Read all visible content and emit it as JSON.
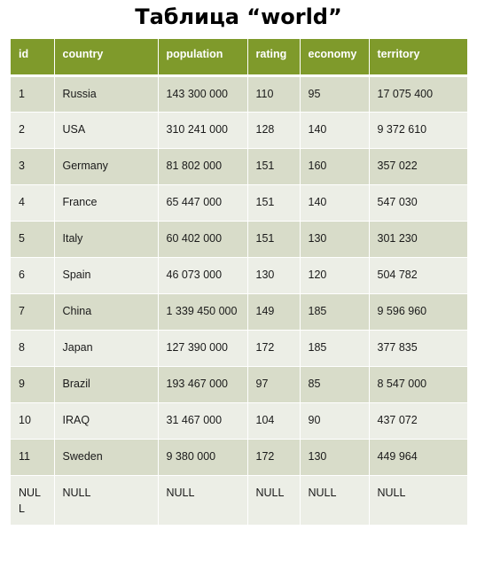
{
  "title": "Таблица “world”",
  "table": {
    "headers": [
      "id",
      "country",
      "population",
      "rating",
      "economy",
      "territory"
    ],
    "rows": [
      [
        "1",
        "Russia",
        "143 300 000",
        "110",
        "95",
        "17 075 400"
      ],
      [
        "2",
        "USA",
        "310 241 000",
        "128",
        "140",
        "9 372 610"
      ],
      [
        "3",
        "Germany",
        "81 802 000",
        "151",
        "160",
        "357 022"
      ],
      [
        "4",
        "France",
        "65 447 000",
        "151",
        "140",
        "547 030"
      ],
      [
        "5",
        "Italy",
        "60 402 000",
        "151",
        "130",
        "301 230"
      ],
      [
        "6",
        "Spain",
        "46 073 000",
        "130",
        "120",
        "504 782"
      ],
      [
        "7",
        "China",
        "1 339 450 000",
        "149",
        "185",
        "9 596 960"
      ],
      [
        "8",
        "Japan",
        "127 390 000",
        "172",
        "185",
        "377 835"
      ],
      [
        "9",
        "Brazil",
        "193 467 000",
        "97",
        "85",
        "8 547 000"
      ],
      [
        "10",
        "IRAQ",
        "31 467 000",
        "104",
        "90",
        "437 072"
      ],
      [
        "11",
        "Sweden",
        "9 380 000",
        "172",
        "130",
        "449 964"
      ],
      [
        "NULL",
        "NULL",
        "NULL",
        "NULL",
        "NULL",
        "NULL"
      ]
    ]
  },
  "colors": {
    "header_bg": "#7f9a2b",
    "row_odd_bg": "#d8dcc9",
    "row_even_bg": "#eceee6"
  }
}
